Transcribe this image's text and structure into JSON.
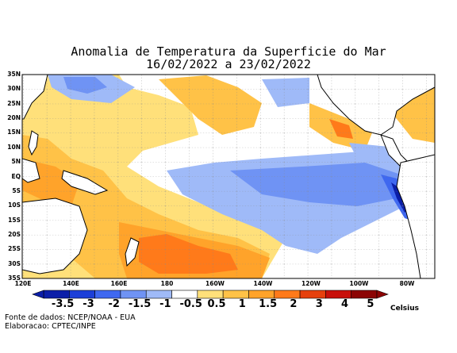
{
  "title_line1": "Anomalia de Temperatura da Superficie do Mar",
  "title_line2": "16/02/2022 a 23/02/2022",
  "lat_labels": [
    "35N",
    "30N",
    "25N",
    "20N",
    "15N",
    "10N",
    "5N",
    "EQ",
    "5S",
    "10S",
    "15S",
    "20S",
    "25S",
    "30S",
    "35S"
  ],
  "lon_labels": [
    "120E",
    "140E",
    "160E",
    "180",
    "160W",
    "140W",
    "120W",
    "100W",
    "80W"
  ],
  "colorbar": {
    "labels": [
      "-3.5",
      "-3",
      "-2",
      "-1.5",
      "-1",
      "-0.5",
      "0.5",
      "1",
      "1.5",
      "2",
      "3",
      "4",
      "5"
    ],
    "colors": [
      "#0b1ea8",
      "#1c3fd8",
      "#3f68f0",
      "#6f93f4",
      "#9fbaf8",
      "#ffffff",
      "#ffe07a",
      "#ffc247",
      "#ffa32a",
      "#ff7a1a",
      "#e6400d",
      "#c8100a",
      "#8c0404"
    ],
    "unit": "Celsius"
  },
  "source_line1": "Fonte de dados: NCEP/NOAA - EUA",
  "source_line2": "Elaboracao: CPTEC/INPE"
}
